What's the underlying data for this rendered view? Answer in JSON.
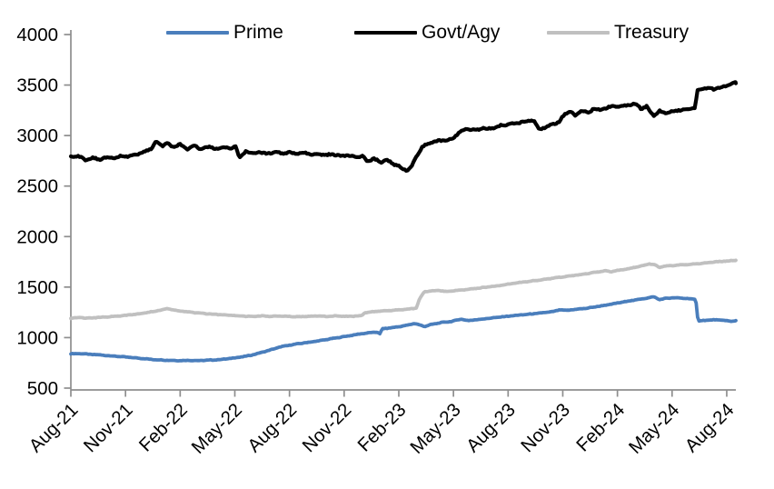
{
  "chart_data": {
    "type": "line",
    "title": "",
    "xlabel": "",
    "ylabel": "",
    "grid": false,
    "legend_position": "top",
    "ylim": [
      500,
      4000
    ],
    "y_ticks": [
      "500",
      "1000",
      "1500",
      "2000",
      "2500",
      "3000",
      "3500",
      "4000"
    ],
    "x_unit": "months_since_Aug_2021",
    "x_end_month": 36.5,
    "x_ticks": [
      {
        "label": "Aug-21",
        "month": 0
      },
      {
        "label": "Nov-21",
        "month": 3
      },
      {
        "label": "Feb-22",
        "month": 6
      },
      {
        "label": "May-22",
        "month": 9
      },
      {
        "label": "Aug-22",
        "month": 12
      },
      {
        "label": "Nov-22",
        "month": 15
      },
      {
        "label": "Feb-23",
        "month": 18
      },
      {
        "label": "May-23",
        "month": 21
      },
      {
        "label": "Aug-23",
        "month": 24
      },
      {
        "label": "Nov-23",
        "month": 27
      },
      {
        "label": "Feb-24",
        "month": 30
      },
      {
        "label": "May-24",
        "month": 33
      },
      {
        "label": "Aug-24",
        "month": 36
      }
    ],
    "series": [
      {
        "name": "Prime",
        "color": "#4a7ebc",
        "width": 3.8,
        "wiggle": 3.5,
        "points": [
          [
            0,
            840
          ],
          [
            0.5,
            842
          ],
          [
            1,
            835
          ],
          [
            1.5,
            830
          ],
          [
            2,
            822
          ],
          [
            2.5,
            815
          ],
          [
            3,
            808
          ],
          [
            3.5,
            800
          ],
          [
            4,
            792
          ],
          [
            4.5,
            783
          ],
          [
            5,
            778
          ],
          [
            5.5,
            774
          ],
          [
            6,
            772
          ],
          [
            6.5,
            775
          ],
          [
            7,
            772
          ],
          [
            7.5,
            776
          ],
          [
            8,
            780
          ],
          [
            8.5,
            788
          ],
          [
            9,
            800
          ],
          [
            9.5,
            812
          ],
          [
            10,
            830
          ],
          [
            10.5,
            855
          ],
          [
            11,
            880
          ],
          [
            11.5,
            908
          ],
          [
            12,
            925
          ],
          [
            12.5,
            940
          ],
          [
            13,
            952
          ],
          [
            13.5,
            965
          ],
          [
            14,
            980
          ],
          [
            14.5,
            995
          ],
          [
            15,
            1010
          ],
          [
            15.5,
            1025
          ],
          [
            16,
            1040
          ],
          [
            16.5,
            1050
          ],
          [
            16.85,
            1055
          ],
          [
            16.95,
            1032
          ],
          [
            17.1,
            1088
          ],
          [
            17.5,
            1095
          ],
          [
            18,
            1108
          ],
          [
            18.4,
            1120
          ],
          [
            18.85,
            1140
          ],
          [
            19.1,
            1128
          ],
          [
            19.4,
            1110
          ],
          [
            19.8,
            1130
          ],
          [
            20.3,
            1148
          ],
          [
            20.9,
            1160
          ],
          [
            21.4,
            1183
          ],
          [
            21.8,
            1168
          ],
          [
            22.3,
            1178
          ],
          [
            22.9,
            1190
          ],
          [
            23.5,
            1202
          ],
          [
            24.1,
            1214
          ],
          [
            24.7,
            1224
          ],
          [
            25.3,
            1234
          ],
          [
            25.9,
            1246
          ],
          [
            26.5,
            1258
          ],
          [
            26.85,
            1276
          ],
          [
            27.2,
            1268
          ],
          [
            27.7,
            1280
          ],
          [
            28.3,
            1290
          ],
          [
            28.9,
            1308
          ],
          [
            29.4,
            1322
          ],
          [
            30,
            1342
          ],
          [
            30.6,
            1362
          ],
          [
            31.1,
            1376
          ],
          [
            31.7,
            1394
          ],
          [
            32,
            1404
          ],
          [
            32.3,
            1376
          ],
          [
            32.7,
            1390
          ],
          [
            33.1,
            1394
          ],
          [
            33.6,
            1390
          ],
          [
            34,
            1384
          ],
          [
            34.3,
            1378
          ],
          [
            34.42,
            1165
          ],
          [
            34.9,
            1172
          ],
          [
            35.4,
            1176
          ],
          [
            35.9,
            1170
          ],
          [
            36.25,
            1160
          ],
          [
            36.5,
            1168
          ]
        ]
      },
      {
        "name": "Govt/Agy",
        "color": "#000000",
        "width": 4.2,
        "wiggle": 10,
        "points": [
          [
            0,
            2788
          ],
          [
            0.4,
            2798
          ],
          [
            0.8,
            2760
          ],
          [
            1.2,
            2778
          ],
          [
            1.6,
            2762
          ],
          [
            2,
            2788
          ],
          [
            2.4,
            2772
          ],
          [
            2.8,
            2800
          ],
          [
            3.2,
            2792
          ],
          [
            3.6,
            2812
          ],
          [
            4,
            2838
          ],
          [
            4.4,
            2868
          ],
          [
            4.7,
            2942
          ],
          [
            5,
            2898
          ],
          [
            5.3,
            2922
          ],
          [
            5.6,
            2888
          ],
          [
            6,
            2912
          ],
          [
            6.4,
            2868
          ],
          [
            6.8,
            2898
          ],
          [
            7.2,
            2862
          ],
          [
            7.6,
            2892
          ],
          [
            8,
            2862
          ],
          [
            8.4,
            2894
          ],
          [
            8.8,
            2868
          ],
          [
            9.05,
            2900
          ],
          [
            9.25,
            2772
          ],
          [
            9.6,
            2842
          ],
          [
            10,
            2820
          ],
          [
            10.4,
            2838
          ],
          [
            10.8,
            2818
          ],
          [
            11.2,
            2836
          ],
          [
            11.6,
            2820
          ],
          [
            12,
            2832
          ],
          [
            12.4,
            2818
          ],
          [
            12.8,
            2828
          ],
          [
            13.2,
            2812
          ],
          [
            13.6,
            2822
          ],
          [
            14,
            2806
          ],
          [
            14.4,
            2814
          ],
          [
            14.8,
            2798
          ],
          [
            15.2,
            2806
          ],
          [
            15.6,
            2788
          ],
          [
            16,
            2796
          ],
          [
            16.3,
            2742
          ],
          [
            16.6,
            2776
          ],
          [
            17,
            2732
          ],
          [
            17.3,
            2762
          ],
          [
            17.7,
            2718
          ],
          [
            18,
            2700
          ],
          [
            18.2,
            2668
          ],
          [
            18.45,
            2652
          ],
          [
            18.7,
            2698
          ],
          [
            19,
            2800
          ],
          [
            19.3,
            2892
          ],
          [
            19.6,
            2916
          ],
          [
            20,
            2944
          ],
          [
            20.4,
            2952
          ],
          [
            20.9,
            2962
          ],
          [
            21.4,
            3046
          ],
          [
            21.8,
            3068
          ],
          [
            22.2,
            3052
          ],
          [
            22.6,
            3074
          ],
          [
            23,
            3066
          ],
          [
            23.4,
            3092
          ],
          [
            23.8,
            3104
          ],
          [
            24.2,
            3118
          ],
          [
            24.6,
            3128
          ],
          [
            25,
            3142
          ],
          [
            25.4,
            3150
          ],
          [
            25.7,
            3058
          ],
          [
            26.1,
            3088
          ],
          [
            26.5,
            3118
          ],
          [
            26.8,
            3135
          ],
          [
            27.1,
            3212
          ],
          [
            27.4,
            3248
          ],
          [
            27.7,
            3195
          ],
          [
            28,
            3252
          ],
          [
            28.4,
            3225
          ],
          [
            28.7,
            3268
          ],
          [
            29.1,
            3252
          ],
          [
            29.5,
            3282
          ],
          [
            30,
            3290
          ],
          [
            30.5,
            3298
          ],
          [
            31,
            3315
          ],
          [
            31.3,
            3268
          ],
          [
            31.6,
            3288
          ],
          [
            32,
            3195
          ],
          [
            32.3,
            3242
          ],
          [
            32.6,
            3222
          ],
          [
            33,
            3240
          ],
          [
            33.5,
            3255
          ],
          [
            34,
            3268
          ],
          [
            34.25,
            3272
          ],
          [
            34.4,
            3452
          ],
          [
            34.7,
            3465
          ],
          [
            35,
            3472
          ],
          [
            35.3,
            3458
          ],
          [
            35.7,
            3478
          ],
          [
            36,
            3498
          ],
          [
            36.3,
            3512
          ],
          [
            36.5,
            3522
          ]
        ]
      },
      {
        "name": "Treasury",
        "color": "#c0c0c0",
        "width": 3.8,
        "wiggle": 3.5,
        "points": [
          [
            0,
            1192
          ],
          [
            0.5,
            1198
          ],
          [
            1,
            1193
          ],
          [
            1.5,
            1200
          ],
          [
            2,
            1205
          ],
          [
            2.5,
            1212
          ],
          [
            3,
            1220
          ],
          [
            3.5,
            1230
          ],
          [
            4,
            1242
          ],
          [
            4.5,
            1258
          ],
          [
            5,
            1275
          ],
          [
            5.3,
            1288
          ],
          [
            5.7,
            1270
          ],
          [
            6,
            1262
          ],
          [
            6.5,
            1252
          ],
          [
            7,
            1244
          ],
          [
            7.5,
            1236
          ],
          [
            8,
            1230
          ],
          [
            8.5,
            1222
          ],
          [
            9,
            1218
          ],
          [
            9.5,
            1212
          ],
          [
            10,
            1208
          ],
          [
            10.5,
            1214
          ],
          [
            11,
            1209
          ],
          [
            11.5,
            1214
          ],
          [
            12,
            1210
          ],
          [
            12.5,
            1206
          ],
          [
            13,
            1210
          ],
          [
            13.5,
            1214
          ],
          [
            14,
            1209
          ],
          [
            14.5,
            1214
          ],
          [
            15,
            1210
          ],
          [
            15.5,
            1212
          ],
          [
            15.95,
            1216
          ],
          [
            16.15,
            1246
          ],
          [
            16.6,
            1256
          ],
          [
            17,
            1262
          ],
          [
            17.5,
            1268
          ],
          [
            18,
            1274
          ],
          [
            18.5,
            1282
          ],
          [
            18.95,
            1290
          ],
          [
            19.15,
            1386
          ],
          [
            19.4,
            1454
          ],
          [
            19.8,
            1462
          ],
          [
            20.2,
            1467
          ],
          [
            20.6,
            1456
          ],
          [
            21,
            1463
          ],
          [
            21.5,
            1472
          ],
          [
            22,
            1482
          ],
          [
            22.5,
            1492
          ],
          [
            23,
            1503
          ],
          [
            23.5,
            1514
          ],
          [
            24,
            1528
          ],
          [
            24.5,
            1541
          ],
          [
            25,
            1553
          ],
          [
            25.5,
            1565
          ],
          [
            26,
            1577
          ],
          [
            26.5,
            1589
          ],
          [
            27,
            1601
          ],
          [
            27.5,
            1613
          ],
          [
            28,
            1625
          ],
          [
            28.5,
            1639
          ],
          [
            29,
            1651
          ],
          [
            29.35,
            1661
          ],
          [
            29.6,
            1651
          ],
          [
            30,
            1665
          ],
          [
            30.5,
            1677
          ],
          [
            31,
            1697
          ],
          [
            31.4,
            1713
          ],
          [
            31.75,
            1729
          ],
          [
            32.05,
            1721
          ],
          [
            32.3,
            1694
          ],
          [
            32.6,
            1707
          ],
          [
            33,
            1713
          ],
          [
            33.5,
            1720
          ],
          [
            34,
            1726
          ],
          [
            34.5,
            1733
          ],
          [
            35,
            1743
          ],
          [
            35.5,
            1751
          ],
          [
            36,
            1758
          ],
          [
            36.5,
            1765
          ]
        ]
      }
    ],
    "axis_color": "#8e8e8e"
  }
}
